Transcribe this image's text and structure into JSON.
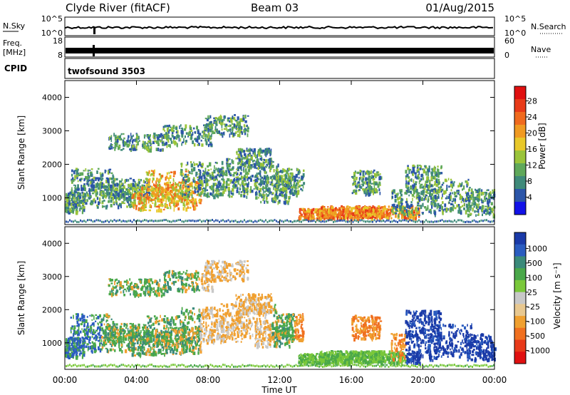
{
  "header": {
    "station": "Clyde River (fitACF)",
    "beam": "Beam 03",
    "date": "01/Aug/2015"
  },
  "panels": {
    "nsky": {
      "label": "N.Sky",
      "right_label": "N.Search",
      "left_ticks": [
        "10^5",
        "10^0"
      ],
      "right_ticks": [
        "10^5",
        "10^0"
      ]
    },
    "freq": {
      "label_line1": "Freq.",
      "label_line2": "[MHz]",
      "right_label": "Nave",
      "left_ticks": [
        "18",
        "8"
      ],
      "right_ticks": [
        "60",
        "0"
      ]
    },
    "cpid": {
      "label": "CPID",
      "value": "twofsound 3503"
    }
  },
  "chart_data": [
    {
      "type": "heatmap",
      "name": "power",
      "ylabel": "Slant Range [km]",
      "x_ticks": [
        "00:00",
        "04:00",
        "08:00",
        "12:00",
        "16:00",
        "20:00",
        "00:00"
      ],
      "y_ticks": [
        1000,
        2000,
        3000,
        4000
      ],
      "ylim": [
        200,
        4500
      ],
      "xlim_hours": [
        0,
        24
      ],
      "colorbar": {
        "label": "Power [dB]",
        "ticks": [
          "4",
          "8",
          "12",
          "16",
          "20",
          "24",
          "28"
        ],
        "colors": [
          "#1212e8",
          "#2b55a8",
          "#3f8a7a",
          "#5fa85a",
          "#9ac43a",
          "#e8c82a",
          "#f09a22",
          "#f06a1e",
          "#e83a18",
          "#e01010"
        ]
      }
    },
    {
      "type": "heatmap",
      "name": "velocity",
      "ylabel": "Slant Range [km]",
      "xlabel": "Time UT",
      "x_ticks": [
        "00:00",
        "04:00",
        "08:00",
        "12:00",
        "16:00",
        "20:00",
        "00:00"
      ],
      "y_ticks": [
        1000,
        2000,
        3000,
        4000
      ],
      "ylim": [
        200,
        4500
      ],
      "xlim_hours": [
        0,
        24
      ],
      "colorbar": {
        "label": "Velocity [m s⁻¹]",
        "ticks": [
          "1000",
          "500",
          "100",
          "25",
          "-25",
          "-100",
          "-500",
          "-1000"
        ],
        "colors": [
          "#1a3aa8",
          "#2a5cc0",
          "#3a8a7a",
          "#4aa84a",
          "#7ac83a",
          "#c8c8c8",
          "#e8c890",
          "#f0a030",
          "#f07020",
          "#e83a1a",
          "#e01010"
        ]
      }
    }
  ]
}
